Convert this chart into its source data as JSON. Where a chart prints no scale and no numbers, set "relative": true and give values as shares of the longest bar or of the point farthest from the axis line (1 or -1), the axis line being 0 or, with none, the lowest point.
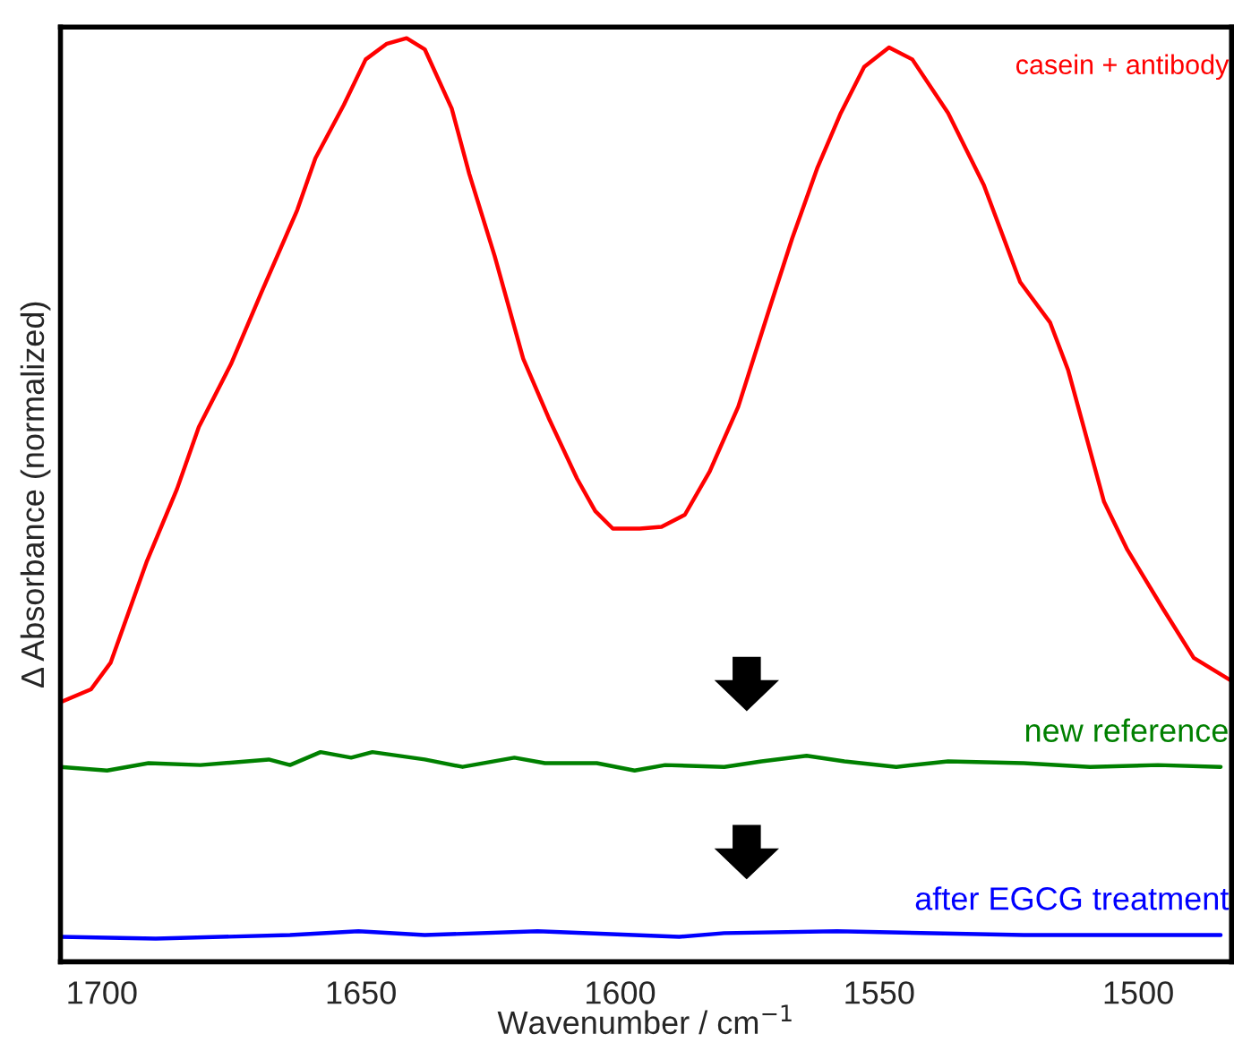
{
  "chart_data": {
    "type": "line",
    "relative": true,
    "xlabel": "Wavenumber / cm$^{−1}$",
    "ylabel": "Δ Absorbance (normalized)",
    "xlim": [
      1708,
      1482
    ],
    "xticks": [
      1700,
      1650,
      1600,
      1550,
      1500
    ],
    "grid": false,
    "legend": false,
    "marker": "none",
    "line_style": "solid",
    "series": [
      {
        "name": "casein + antibody",
        "color": "#ff0000",
        "x": [
          1708,
          1702.1,
          1698.3,
          1691.3,
          1685.5,
          1681.3,
          1675.1,
          1669.2,
          1664.7,
          1662.3,
          1658.8,
          1653.3,
          1649.1,
          1645,
          1641.2,
          1637.7,
          1632.5,
          1629.1,
          1624.2,
          1618.7,
          1613.8,
          1608.3,
          1604.8,
          1601.4,
          1596.2,
          1592,
          1587.5,
          1582.7,
          1577.2,
          1571.3,
          1566.8,
          1561.9,
          1557.4,
          1552.9,
          1548.1,
          1543.6,
          1536.7,
          1529.8,
          1522.8,
          1517,
          1513.5,
          1506.6,
          1502.1,
          1495.2,
          1489.3,
          1482
        ],
        "values": [
          0.281,
          0.295,
          0.324,
          0.434,
          0.512,
          0.579,
          0.647,
          0.725,
          0.783,
          0.814,
          0.87,
          0.928,
          0.977,
          0.994,
          1.0,
          0.988,
          0.924,
          0.853,
          0.764,
          0.653,
          0.589,
          0.523,
          0.488,
          0.469,
          0.469,
          0.471,
          0.484,
          0.531,
          0.601,
          0.705,
          0.783,
          0.86,
          0.919,
          0.969,
          0.99,
          0.977,
          0.919,
          0.841,
          0.736,
          0.692,
          0.64,
          0.498,
          0.446,
          0.382,
          0.329,
          0.304
        ]
      },
      {
        "name": "new reference",
        "color": "#008000",
        "x": [
          1708,
          1699,
          1691,
          1681,
          1667.8,
          1663.7,
          1657.8,
          1651.9,
          1647.8,
          1637.7,
          1630.4,
          1620.4,
          1614.5,
          1604.5,
          1597.2,
          1591.3,
          1579.9,
          1572.7,
          1564,
          1556.7,
          1546.7,
          1536.7,
          1522.1,
          1509.3,
          1496.2,
          1484.1
        ],
        "values": [
          0.211,
          0.207,
          0.215,
          0.213,
          0.219,
          0.213,
          0.227,
          0.221,
          0.227,
          0.219,
          0.211,
          0.221,
          0.215,
          0.215,
          0.207,
          0.213,
          0.211,
          0.217,
          0.223,
          0.217,
          0.211,
          0.217,
          0.215,
          0.211,
          0.213,
          0.211
        ]
      },
      {
        "name": "after EGCG treatment",
        "color": "#0000ff",
        "x": [
          1708,
          1689.6,
          1663.7,
          1650.5,
          1637.7,
          1615.9,
          1588.6,
          1579.9,
          1558.1,
          1522.1,
          1508,
          1484.1
        ],
        "values": [
          0.027,
          0.025,
          0.029,
          0.033,
          0.029,
          0.033,
          0.027,
          0.031,
          0.033,
          0.029,
          0.029,
          0.029
        ]
      }
    ]
  }
}
